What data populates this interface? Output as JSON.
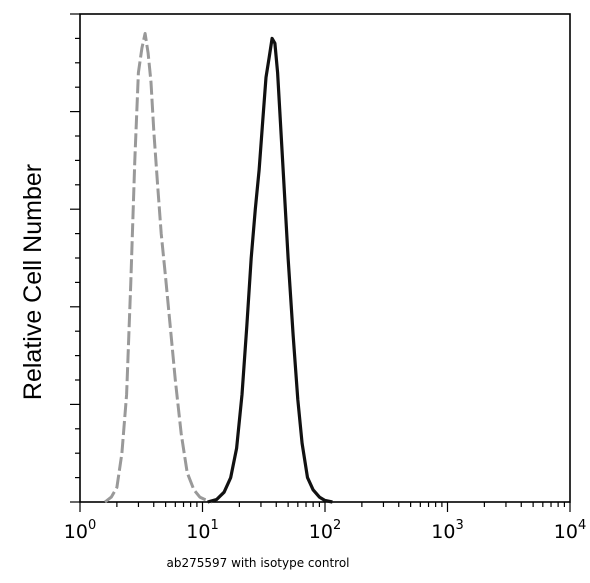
{
  "chart_data": {
    "type": "line",
    "title": "",
    "xlabel": "ab275597 with isotype control",
    "ylabel": "Relative Cell Number",
    "x_scale": "log",
    "xlim": [
      1,
      10000
    ],
    "ylim": [
      0,
      100
    ],
    "grid": false,
    "legend": "none",
    "x_ticks": [
      {
        "value": 1,
        "base": "10",
        "exp": "0"
      },
      {
        "value": 10,
        "base": "10",
        "exp": "1"
      },
      {
        "value": 100,
        "base": "10",
        "exp": "2"
      },
      {
        "value": 1000,
        "base": "10",
        "exp": "3"
      },
      {
        "value": 10000,
        "base": "10",
        "exp": "4"
      }
    ],
    "y_major_ticks": [
      0,
      20,
      40,
      60,
      80,
      100
    ],
    "series": [
      {
        "role": "isotype control",
        "color": "#999999",
        "style": "dashed",
        "x": [
          1.6,
          1.8,
          2.0,
          2.2,
          2.4,
          2.6,
          2.8,
          3.0,
          3.2,
          3.4,
          3.6,
          3.8,
          4.0,
          4.3,
          4.6,
          5.0,
          5.5,
          6.0,
          6.7,
          7.5,
          8.5,
          9.5,
          10.5,
          12
        ],
        "y": [
          0,
          1,
          3,
          10,
          22,
          45,
          70,
          88,
          93,
          96,
          92,
          86,
          76,
          65,
          55,
          46,
          35,
          25,
          14,
          6,
          2.5,
          1,
          0.5,
          0
        ]
      },
      {
        "role": "ab275597",
        "color": "#111111",
        "style": "solid",
        "x": [
          11,
          13,
          15,
          17,
          19,
          21,
          23,
          25,
          27,
          29,
          31,
          33,
          35,
          37,
          39,
          41,
          43,
          46,
          50,
          55,
          60,
          65,
          72,
          80,
          90,
          100,
          115
        ],
        "y": [
          0,
          0.5,
          2,
          5,
          11,
          22,
          36,
          50,
          60,
          68,
          78,
          87,
          91,
          95,
          94,
          88,
          79,
          66,
          50,
          34,
          21,
          12,
          5,
          2.5,
          1,
          0.3,
          0
        ]
      }
    ]
  }
}
